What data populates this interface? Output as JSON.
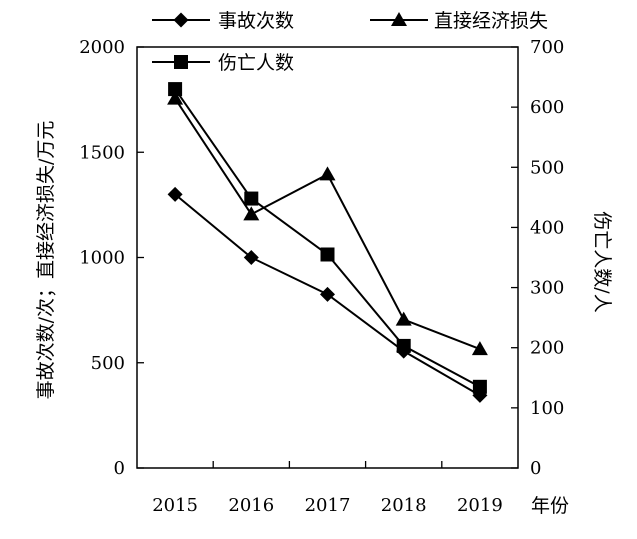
{
  "chart_data": {
    "type": "line",
    "categories": [
      "2015",
      "2016",
      "2017",
      "2018",
      "2019"
    ],
    "xlabel": "年份",
    "y_left": {
      "label": "事故次数/次；直接经济损失/万元",
      "ticks": [
        0,
        500,
        1000,
        1500,
        2000
      ],
      "ylim": [
        0,
        2000
      ]
    },
    "y_right": {
      "label": "伤亡人数/人",
      "ticks": [
        0,
        100,
        200,
        300,
        400,
        500,
        600,
        700
      ],
      "ylim": [
        0,
        700
      ]
    },
    "series": [
      {
        "name": "事故次数",
        "marker": "diamond",
        "axis": "left",
        "values": [
          1300,
          1000,
          825,
          555,
          345
        ]
      },
      {
        "name": "直接经济损失",
        "marker": "triangle",
        "axis": "left",
        "values": [
          1755,
          1205,
          1395,
          705,
          565
        ]
      },
      {
        "name": "伤亡人数",
        "marker": "square",
        "axis": "right",
        "values": [
          630,
          448,
          355,
          203,
          135
        ]
      }
    ],
    "legend_placement": "top",
    "grid": false
  }
}
